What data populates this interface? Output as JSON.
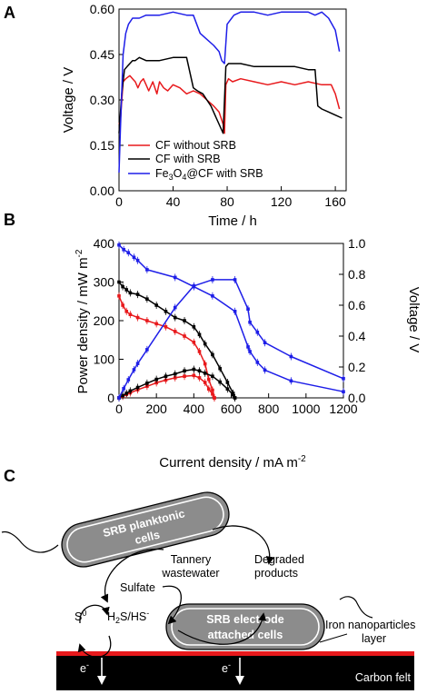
{
  "panels": {
    "a": "A",
    "b": "B",
    "c": "C"
  },
  "colors": {
    "red": "#e8191c",
    "black": "#000000",
    "blue": "#1e1ee8"
  },
  "chart_data": [
    {
      "type": "line",
      "xlabel": "Time / h",
      "ylabel": "Voltage / V",
      "xlim": [
        0,
        168
      ],
      "ylim": [
        0,
        0.6
      ],
      "xticks": [
        "0",
        "40",
        "80",
        "120",
        "160"
      ],
      "yticks": [
        "0.00",
        "0.15",
        "0.30",
        "0.45",
        "0.60"
      ],
      "legend_position": "lower-left",
      "series": [
        {
          "name": "CF without SRB",
          "color": "#e8191c",
          "x": [
            0,
            1,
            3,
            5,
            8,
            10,
            12,
            14,
            16,
            18,
            20,
            22,
            25,
            28,
            30,
            33,
            36,
            40,
            45,
            50,
            55,
            60,
            65,
            70,
            74,
            77,
            78,
            79,
            81,
            84,
            90,
            100,
            110,
            120,
            130,
            140,
            150,
            157,
            160,
            163
          ],
          "y": [
            0.22,
            0.23,
            0.36,
            0.37,
            0.38,
            0.37,
            0.36,
            0.34,
            0.36,
            0.37,
            0.35,
            0.33,
            0.36,
            0.32,
            0.36,
            0.34,
            0.33,
            0.35,
            0.34,
            0.32,
            0.33,
            0.32,
            0.3,
            0.28,
            0.26,
            0.22,
            0.19,
            0.35,
            0.37,
            0.36,
            0.37,
            0.36,
            0.35,
            0.36,
            0.35,
            0.36,
            0.35,
            0.35,
            0.32,
            0.27
          ]
        },
        {
          "name": "CF with SRB",
          "color": "#000000",
          "x": [
            0,
            2,
            4,
            6,
            8,
            10,
            12,
            15,
            20,
            30,
            40,
            50,
            55,
            58,
            62,
            65,
            68,
            72,
            75,
            77,
            78,
            79,
            81,
            90,
            100,
            110,
            120,
            130,
            140,
            145,
            147,
            150,
            155,
            160,
            165
          ],
          "y": [
            0.19,
            0.32,
            0.4,
            0.41,
            0.42,
            0.43,
            0.43,
            0.44,
            0.43,
            0.43,
            0.44,
            0.44,
            0.34,
            0.33,
            0.32,
            0.3,
            0.28,
            0.24,
            0.21,
            0.19,
            0.3,
            0.41,
            0.42,
            0.42,
            0.41,
            0.41,
            0.41,
            0.41,
            0.4,
            0.4,
            0.28,
            0.27,
            0.26,
            0.25,
            0.24
          ]
        },
        {
          "name": "Fe3O4@CF with SRB",
          "color": "#1e1ee8",
          "x": [
            0,
            1,
            3,
            5,
            7,
            10,
            15,
            20,
            30,
            40,
            50,
            55,
            60,
            65,
            70,
            74,
            76,
            78,
            80,
            85,
            90,
            100,
            110,
            120,
            130,
            140,
            145,
            150,
            155,
            160,
            163
          ],
          "y": [
            0.06,
            0.2,
            0.45,
            0.52,
            0.55,
            0.57,
            0.57,
            0.58,
            0.58,
            0.59,
            0.58,
            0.58,
            0.52,
            0.5,
            0.48,
            0.46,
            0.43,
            0.42,
            0.55,
            0.58,
            0.59,
            0.59,
            0.58,
            0.59,
            0.59,
            0.59,
            0.58,
            0.59,
            0.57,
            0.53,
            0.46
          ]
        }
      ]
    },
    {
      "type": "line",
      "xlabel": "Current density / mA m⁻²",
      "ylabel_left": "Power density / mW m⁻²",
      "ylabel_right": "Voltage / V",
      "xlim": [
        0,
        1200
      ],
      "ylim_left": [
        0,
        400
      ],
      "ylim_right": [
        0,
        1.0
      ],
      "xticks": [
        "0",
        "200",
        "400",
        "600",
        "800",
        "1000",
        "1200"
      ],
      "yticks_left": [
        "0",
        "100",
        "200",
        "300",
        "400"
      ],
      "yticks_right": [
        "0.0",
        "0.2",
        "0.4",
        "0.6",
        "0.8",
        "1.0"
      ],
      "series": [
        {
          "axis": "right",
          "color": "#e8191c",
          "x": [
            0,
            20,
            40,
            60,
            100,
            150,
            200,
            250,
            300,
            350,
            400,
            430,
            460,
            480,
            500,
            510
          ],
          "y": [
            0.66,
            0.6,
            0.56,
            0.54,
            0.52,
            0.5,
            0.48,
            0.46,
            0.43,
            0.4,
            0.36,
            0.3,
            0.22,
            0.12,
            0.05,
            0.0
          ]
        },
        {
          "axis": "left",
          "color": "#e8191c",
          "x": [
            0,
            20,
            40,
            60,
            100,
            150,
            200,
            250,
            300,
            350,
            400,
            430,
            460,
            480,
            500,
            510
          ],
          "y": [
            0,
            4,
            9,
            13,
            21,
            30,
            39,
            46,
            52,
            56,
            58,
            52,
            40,
            23,
            10,
            0
          ]
        },
        {
          "axis": "right",
          "color": "#000000",
          "x": [
            0,
            20,
            40,
            60,
            100,
            150,
            200,
            250,
            300,
            350,
            400,
            430,
            460,
            500,
            540,
            580,
            610,
            620
          ],
          "y": [
            0.75,
            0.72,
            0.7,
            0.68,
            0.67,
            0.64,
            0.6,
            0.56,
            0.52,
            0.5,
            0.46,
            0.41,
            0.35,
            0.28,
            0.19,
            0.1,
            0.03,
            0.0
          ]
        },
        {
          "axis": "left",
          "color": "#000000",
          "x": [
            0,
            20,
            40,
            60,
            100,
            150,
            200,
            250,
            300,
            350,
            400,
            430,
            460,
            500,
            540,
            580,
            610,
            620
          ],
          "y": [
            0,
            6,
            12,
            18,
            27,
            38,
            48,
            56,
            62,
            70,
            74,
            70,
            64,
            56,
            41,
            23,
            8,
            0
          ]
        },
        {
          "axis": "right",
          "color": "#1e1ee8",
          "x": [
            0,
            25,
            50,
            80,
            100,
            150,
            300,
            400,
            500,
            620,
            690,
            700,
            740,
            780,
            920,
            1200
          ],
          "y": [
            0.99,
            0.96,
            0.94,
            0.91,
            0.89,
            0.83,
            0.78,
            0.72,
            0.66,
            0.56,
            0.33,
            0.3,
            0.23,
            0.18,
            0.11,
            0.04
          ]
        },
        {
          "axis": "left",
          "color": "#1e1ee8",
          "x": [
            0,
            25,
            50,
            80,
            100,
            150,
            300,
            400,
            500,
            620,
            690,
            700,
            740,
            780,
            920,
            1200
          ],
          "y": [
            0,
            24,
            47,
            73,
            89,
            125,
            234,
            290,
            306,
            306,
            230,
            196,
            170,
            143,
            107,
            50
          ]
        }
      ]
    }
  ],
  "legend": {
    "items": [
      {
        "label": "CF without SRB"
      },
      {
        "label": "CF with SRB"
      },
      {
        "label_pre": "Fe",
        "label_sub1": "3",
        "label_mid": "O",
        "label_sub2": "4",
        "label_post": "@CF with SRB"
      }
    ]
  },
  "axes_text": {
    "a_xlabel": "Time / h",
    "a_ylabel": "Voltage / V",
    "b_xlabel_pre": "Current density / mA m",
    "b_xlabel_sup": "-2",
    "b_ylabel_left_pre": "Power density / mW m",
    "b_ylabel_left_sup": "-2",
    "b_ylabel_right": "Voltage / V"
  },
  "diagram": {
    "planktonic_line1": "SRB planktonic",
    "planktonic_line2": "cells",
    "tannery_line1": "Tannery",
    "tannery_line2": "wastewater",
    "degraded_line1": "Degraded",
    "degraded_line2": "products",
    "sulfate": "Sulfate",
    "s0_base": "S",
    "s0_sup": "0",
    "h2s_a": "H",
    "h2s_sub": "2",
    "h2s_b": "S/HS",
    "h2s_sup": "-",
    "attached_line1": "SRB electrode",
    "attached_line2": "attached cells",
    "iron_line1": "Iron nanoparticles",
    "iron_line2": "layer",
    "carbon_felt": "Carbon felt",
    "electron1_base": "e",
    "electron1_sup": "-",
    "electron2_base": "e",
    "electron2_sup": "-"
  }
}
